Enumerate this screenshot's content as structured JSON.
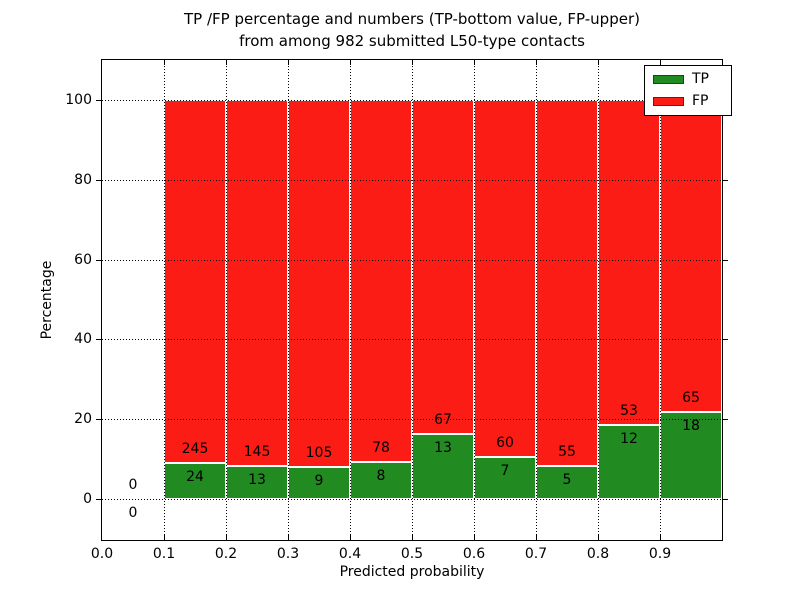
{
  "figure": {
    "title_line1": "TP /FP percentage and numbers (TP-bottom value, FP-upper)",
    "title_line2": "from among 982 submitted L50-type contacts"
  },
  "chart_data": {
    "type": "bar",
    "stacked": true,
    "normalized_to_100_percent": true,
    "title": "TP /FP percentage and numbers (TP-bottom value, FP-upper)\nfrom among 982 submitted L50-type contacts",
    "total_contacts": 982,
    "xlabel": "Predicted probability",
    "ylabel": "Percentage",
    "xlim": [
      0.0,
      1.0
    ],
    "ylim": [
      -10.3,
      110.0
    ],
    "xticks": [
      0.0,
      0.1,
      0.2,
      0.3,
      0.4,
      0.5,
      0.6,
      0.7,
      0.8,
      0.9
    ],
    "xtick_labels": [
      "0.0",
      "0.1",
      "0.2",
      "0.3",
      "0.4",
      "0.5",
      "0.6",
      "0.7",
      "0.8",
      "0.9"
    ],
    "yticks": [
      0,
      20,
      40,
      60,
      80,
      100
    ],
    "ytick_labels": [
      "0",
      "20",
      "40",
      "60",
      "80",
      "100"
    ],
    "grid_style": "dotted",
    "grid_on": true,
    "colors": {
      "tp": "#218a21",
      "fp": "#fb1d15"
    },
    "legend": {
      "position": "upper right",
      "entries": [
        {
          "label": "TP",
          "color": "#218a21"
        },
        {
          "label": "FP",
          "color": "#fb1d15"
        }
      ]
    },
    "bins": [
      {
        "x_start": 0.0,
        "x_end": 0.1,
        "tp": 0,
        "fp": 0,
        "tp_pct": 0.0
      },
      {
        "x_start": 0.1,
        "x_end": 0.2,
        "tp": 24,
        "fp": 245,
        "tp_pct": 8.92
      },
      {
        "x_start": 0.2,
        "x_end": 0.3,
        "tp": 13,
        "fp": 145,
        "tp_pct": 8.23
      },
      {
        "x_start": 0.3,
        "x_end": 0.4,
        "tp": 9,
        "fp": 105,
        "tp_pct": 7.89
      },
      {
        "x_start": 0.4,
        "x_end": 0.5,
        "tp": 8,
        "fp": 78,
        "tp_pct": 9.3
      },
      {
        "x_start": 0.5,
        "x_end": 0.6,
        "tp": 13,
        "fp": 67,
        "tp_pct": 16.25
      },
      {
        "x_start": 0.6,
        "x_end": 0.7,
        "tp": 7,
        "fp": 60,
        "tp_pct": 10.45
      },
      {
        "x_start": 0.7,
        "x_end": 0.8,
        "tp": 5,
        "fp": 55,
        "tp_pct": 8.33
      },
      {
        "x_start": 0.8,
        "x_end": 0.9,
        "tp": 12,
        "fp": 53,
        "tp_pct": 18.46
      },
      {
        "x_start": 0.9,
        "x_end": 1.0,
        "tp": 18,
        "fp": 65,
        "tp_pct": 21.69
      }
    ],
    "series": [
      {
        "name": "TP",
        "values": [
          0,
          24,
          13,
          9,
          8,
          13,
          7,
          5,
          12,
          18
        ]
      },
      {
        "name": "FP",
        "values": [
          0,
          245,
          145,
          105,
          78,
          67,
          60,
          55,
          53,
          65
        ]
      }
    ]
  }
}
